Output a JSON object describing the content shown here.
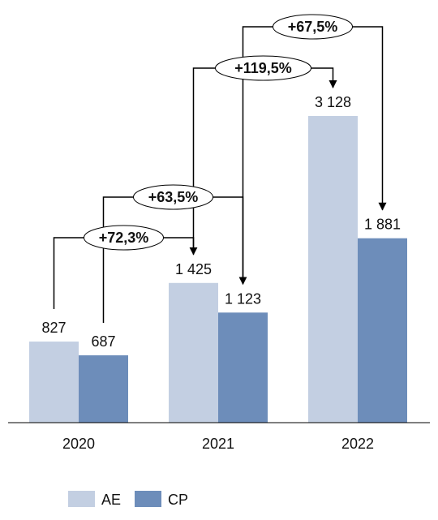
{
  "chart_data": {
    "type": "bar",
    "categories": [
      "2020",
      "2021",
      "2022"
    ],
    "series": [
      {
        "name": "AE",
        "values": [
          827,
          1425,
          3128
        ],
        "labels": [
          "827",
          "1 425",
          "3 128"
        ],
        "color": "#c3cfe2"
      },
      {
        "name": "CP",
        "values": [
          687,
          1123,
          1881
        ],
        "labels": [
          "687",
          "1 123",
          "1 881"
        ],
        "color": "#6d8dba"
      }
    ],
    "ylim": [
      0,
      3128
    ],
    "grid": false,
    "legend_position": "bottom-left",
    "annotations": [
      {
        "text": "+72,3%",
        "series": "AE",
        "from": "2020",
        "to": "2021"
      },
      {
        "text": "+63,5%",
        "series": "CP",
        "from": "2020",
        "to": "2021"
      },
      {
        "text": "+119,5%",
        "series": "AE",
        "from": "2021",
        "to": "2022"
      },
      {
        "text": "+67,5%",
        "series": "CP",
        "from": "2021",
        "to": "2022"
      }
    ]
  }
}
